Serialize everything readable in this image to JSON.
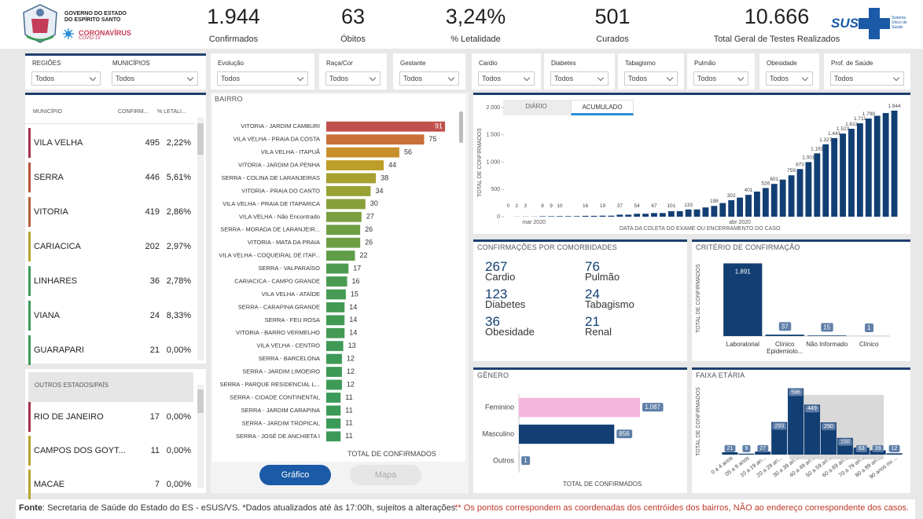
{
  "header": {
    "org_line1": "GOVERNO DO ESTADO",
    "org_line2": "DO ESPÍRITO SANTO",
    "brand": "CORONAVÍRUS",
    "brand_sub": "COVID-19",
    "kpis": [
      {
        "value": "1.944",
        "label": "Confirmados"
      },
      {
        "value": "63",
        "label": "Óbitos"
      },
      {
        "value": "3,24%",
        "label": "% Letalidade"
      },
      {
        "value": "501",
        "label": "Curados"
      },
      {
        "value": "10.666",
        "label": "Total Geral de Testes Realizados"
      }
    ],
    "sus": "SUS",
    "sus_sub": "Sistema Único de Saúde"
  },
  "filters": [
    {
      "label": "REGIÕES",
      "value": "Todos"
    },
    {
      "label": "MUNICÍPIOS",
      "value": "Todos"
    },
    {
      "label": "Evolução",
      "value": "Todos"
    },
    {
      "label": "Raça/Cor",
      "value": "Todos"
    },
    {
      "label": "Gestante",
      "value": "Todos"
    },
    {
      "label": "Cardio",
      "value": "Todos"
    },
    {
      "label": "Diabetes",
      "value": "Todos"
    },
    {
      "label": "Tabagismo",
      "value": "Todos"
    },
    {
      "label": "Pulmão",
      "value": "Todos"
    },
    {
      "label": "Obesidade",
      "value": "Todos"
    },
    {
      "label": "Prof. de Saúde",
      "value": "Todos"
    }
  ],
  "municipios": {
    "headers": [
      "MUNICÍPIO",
      "CONFIRM...",
      "% LETALI..."
    ],
    "rows": [
      {
        "name": "VILA VELHA",
        "confirmados": 495,
        "letalidade": "2,22%",
        "color": "#a3334b"
      },
      {
        "name": "SERRA",
        "confirmados": 446,
        "letalidade": "5,61%",
        "color": "#b5553c"
      },
      {
        "name": "VITORIA",
        "confirmados": 419,
        "letalidade": "2,86%",
        "color": "#b5603c"
      },
      {
        "name": "CARIACICA",
        "confirmados": 202,
        "letalidade": "2,97%",
        "color": "#b8a42c"
      },
      {
        "name": "LINHARES",
        "confirmados": 36,
        "letalidade": "2,78%",
        "color": "#3c9a58"
      },
      {
        "name": "VIANA",
        "confirmados": 24,
        "letalidade": "8,33%",
        "color": "#3c9a58"
      },
      {
        "name": "GUARAPARI",
        "confirmados": 21,
        "letalidade": "0,00%",
        "color": "#3c9a58"
      }
    ]
  },
  "outros": {
    "header": "OUTROS ESTADOS/PAÍS",
    "rows": [
      {
        "name": "RIO DE JANEIRO",
        "confirmados": 17,
        "letalidade": "0,00%",
        "color": "#a3334b"
      },
      {
        "name": "CAMPOS DOS GOYT...",
        "confirmados": 11,
        "letalidade": "0,00%",
        "color": "#b8a42c"
      },
      {
        "name": "MACAE",
        "confirmados": 7,
        "letalidade": "0,00%",
        "color": "#b8a42c"
      }
    ]
  },
  "bairro": {
    "type": "bar",
    "orientation": "horizontal",
    "title": "BAIRRO",
    "xlabel": "TOTAL DE CONFIRMADOS",
    "categories": [
      "VITORIA - JARDIM CAMBURI",
      "VILA VELHA - PRAIA DA COSTA",
      "VILA VELHA - ITAPUÃ",
      "VITORIA - JARDIM DA PENHA",
      "SERRA - COLINA DE LARANJEIRAS",
      "VITORIA - PRAIA DO CANTO",
      "VILA VELHA - PRAIA DE ITAPARICA",
      "VILA VELHA - Não Encontrado",
      "SERRA - MORADA DE LARANJEIR...",
      "VITORIA - MATA DA PRAIA",
      "VILA VELHA - COQUEIRAL DE ITAP...",
      "SERRA - VALPARAÍSO",
      "CARIACICA - CAMPO GRANDE",
      "VILA VELHA - ATAÍDE",
      "SERRA - CARAPINA GRANDE",
      "SERRA - FEU ROSA",
      "VITORIA - BARRO VERMELHO",
      "VILA VELHA - CENTRO",
      "SERRA - BARCELONA",
      "SERRA - JARDIM LIMOEIRO",
      "SERRA - PARQUE RESIDENCIAL L...",
      "SERRA - CIDADE CONTINENTAL",
      "SERRA - JARDIM CARAPINA",
      "SERRA - JARDIM TROPICAL",
      "SERRA - JOSÉ DE ANCHIETA I"
    ],
    "values": [
      91,
      75,
      56,
      44,
      38,
      34,
      30,
      27,
      26,
      26,
      22,
      17,
      16,
      15,
      14,
      14,
      14,
      13,
      12,
      12,
      12,
      11,
      11,
      11,
      11
    ],
    "colors": [
      "#c0504d",
      "#c8703a",
      "#c8902c",
      "#bd9e28",
      "#a6a131",
      "#98a135",
      "#88a03a",
      "#7a9f40",
      "#6e9e44",
      "#6e9e44",
      "#5f9d49",
      "#4e9b50",
      "#4a9b52",
      "#469a54",
      "#439a55",
      "#439a55",
      "#439a55",
      "#409a56",
      "#3e9a57",
      "#3e9a57",
      "#3e9a57",
      "#3c9a58",
      "#3c9a58",
      "#3c9a58",
      "#3c9a58"
    ],
    "xlim": [
      0,
      100
    ]
  },
  "buttons": [
    "Gráfico",
    "Mapa"
  ],
  "timeline": {
    "type": "bar",
    "tabs": [
      "DIÁRIO",
      "ACUMULADO"
    ],
    "ylabel": "TOTAL DE CONFIRMADOS",
    "xlabel": "DATA DA COLETA DO EXAME OU ENCERRAMENTO DO CASO",
    "color": "#123f73",
    "categories": [
      null,
      null,
      null,
      "mar 2020",
      null,
      null,
      null,
      null,
      null,
      null,
      null,
      null,
      null,
      null,
      null,
      null,
      null,
      null,
      null,
      null,
      null,
      null,
      null,
      null,
      null,
      null,
      null,
      "abr 2020",
      null,
      null,
      null,
      null,
      null,
      null,
      null,
      null,
      null,
      null,
      null,
      null,
      null,
      null,
      null,
      null,
      null,
      null
    ],
    "values": [
      0,
      2,
      3,
      3,
      8,
      9,
      10,
      10,
      10,
      16,
      16,
      19,
      19,
      37,
      37,
      54,
      54,
      67,
      67,
      101,
      101,
      133,
      133,
      170,
      198,
      250,
      302,
      350,
      401,
      460,
      526,
      601,
      680,
      759,
      873,
      1001,
      1161,
      1327,
      1441,
      1523,
      1611,
      1711,
      1799,
      1850,
      1900,
      1944
    ],
    "value_labels": [
      "0",
      "2",
      "3",
      null,
      "8",
      "9",
      "10",
      null,
      null,
      "16",
      null,
      "19",
      null,
      "37",
      null,
      "54",
      null,
      "67",
      null,
      "101",
      null,
      "133",
      null,
      null,
      "198",
      null,
      "302",
      null,
      "401",
      null,
      "526",
      "601",
      null,
      "759",
      "873",
      "1.001",
      "1.161",
      "1.327",
      "1.441",
      "1.523",
      "1.611",
      "1.711",
      "1.799",
      null,
      null,
      "1.944"
    ],
    "ylim": [
      0,
      2000
    ],
    "yticks": [
      0,
      500,
      {
        "value": 1000,
        "label": "1.000"
      },
      {
        "value": 1500,
        "label": "1.500"
      },
      {
        "value": 2000,
        "label": "2.000"
      }
    ]
  },
  "comorbidades": {
    "title": "CONFIRMAÇÕES POR COMORBIDADES",
    "items": [
      {
        "value": 267,
        "label": "Cardio"
      },
      {
        "value": 76,
        "label": "Pulmão"
      },
      {
        "value": 123,
        "label": "Diabetes"
      },
      {
        "value": 24,
        "label": "Tabagismo"
      },
      {
        "value": 36,
        "label": "Obesidade"
      },
      {
        "value": 21,
        "label": "Renal"
      }
    ]
  },
  "criterio": {
    "type": "bar",
    "title": "CRITÉRIO DE CONFIRMAÇÃO",
    "ylabel": "TOTAL DE CONFIRMADOS",
    "color": "#123f73",
    "categories": [
      "Laboratorial",
      "Clínico Epidemiolo...",
      "Não Informado",
      "Clínico"
    ],
    "values": [
      1891,
      37,
      15,
      1
    ],
    "value_labels": [
      "1.891",
      "37",
      "15",
      "1"
    ],
    "ylim": [
      0,
      1900
    ]
  },
  "genero": {
    "type": "bar",
    "orientation": "horizontal",
    "title": "GÊNERO",
    "xlabel": "TOTAL DE CONFIRMADOS",
    "categories": [
      "Feminino",
      "Masculino",
      "Outros"
    ],
    "values": [
      1087,
      856,
      1
    ],
    "value_labels": [
      "1.087",
      "856",
      "1"
    ],
    "colors": [
      "#f4b6dc",
      "#123f73",
      "#123f73"
    ],
    "xlim": [
      0,
      1200
    ]
  },
  "faixa": {
    "type": "bar",
    "title": "FAIXA ETÁRIA",
    "ylabel": "TOTAL DE CONFIRMADOS",
    "color": "#123f73",
    "categories": [
      "0 a 4 anos",
      "05 a 9 anos",
      "10 a 19 an...",
      "20 a 29 an...",
      "30 a 39 an...",
      "40 a 49 an...",
      "50 a 59 an...",
      "60 a 69 an...",
      "70 a 79 an...",
      "80 a 89 an...",
      "90 anos ou ..."
    ],
    "values": [
      21,
      9,
      27,
      293,
      596,
      449,
      290,
      150,
      63,
      39,
      12
    ],
    "ylim": [
      0,
      600
    ]
  },
  "footer": {
    "source_label": "Fonte",
    "source_text": ": Secretaria de Saúde do Estado do ES - eSUS/VS. *Dados atualizados até às 17:00h, sujeitos a alterações.",
    "note": "** Os pontos correspondem as coordenadas dos centróides dos bairros, NÃO ao endereço correspondente dos casos."
  }
}
